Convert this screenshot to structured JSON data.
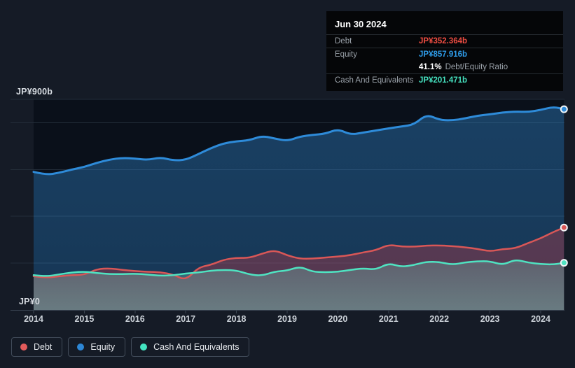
{
  "axis": {
    "y_top_label": "JP¥900b",
    "y_bottom_label": "JP¥0",
    "x_ticks": [
      "2014",
      "2015",
      "2016",
      "2017",
      "2018",
      "2019",
      "2020",
      "2021",
      "2022",
      "2023",
      "2024"
    ],
    "y_gridline_values": [
      900,
      800,
      600,
      400,
      200
    ]
  },
  "tooltip": {
    "date": "Jun 30 2024",
    "debt_label": "Debt",
    "debt_value": "JP¥352.364b",
    "equity_label": "Equity",
    "equity_value": "JP¥857.916b",
    "ratio_value": "41.1%",
    "ratio_label": "Debt/Equity Ratio",
    "cash_label": "Cash And Equivalents",
    "cash_value": "JP¥201.471b"
  },
  "legend": {
    "items": [
      {
        "label": "Debt",
        "color": "#E25B5B"
      },
      {
        "label": "Equity",
        "color": "#2D87D6"
      },
      {
        "label": "Cash And Equivalents",
        "color": "#43E3C0"
      }
    ]
  },
  "colors": {
    "page_bg": "#151B26",
    "plot_bg": "#0A101A",
    "grid_line": "#242E3A",
    "axis_line": "#3A4451",
    "tick_text": "#CBD1D8",
    "debt_line": "#D95757",
    "equity_line": "#2E8BD9",
    "cash_line": "#4FE3C1",
    "debt_value_text": "#EF4D42",
    "equity_value_text": "#2E9BE8",
    "cash_value_text": "#45E0BE",
    "dot_ring": "#F2F5F7"
  },
  "chart_data": {
    "type": "area",
    "title": "Debt, Equity and Cash history 2014 - Jun 30 2024",
    "unit": "JP¥ billions",
    "ylim": [
      0,
      900
    ],
    "x_range": [
      2014,
      2024.46
    ],
    "grid": true,
    "legend_position": "bottom-left",
    "x": [
      2014,
      2014.25,
      2014.5,
      2014.75,
      2015,
      2015.25,
      2015.5,
      2015.75,
      2016,
      2016.25,
      2016.5,
      2016.75,
      2017,
      2017.25,
      2017.5,
      2017.75,
      2018,
      2018.25,
      2018.5,
      2018.75,
      2019,
      2019.25,
      2019.5,
      2019.75,
      2020,
      2020.25,
      2020.5,
      2020.75,
      2021,
      2021.25,
      2021.5,
      2021.75,
      2022,
      2022.25,
      2022.5,
      2022.75,
      2023,
      2023.25,
      2023.5,
      2023.75,
      2024,
      2024.25,
      2024.46
    ],
    "series": [
      {
        "name": "Equity",
        "color": "#2E8BD9",
        "final_label": "JP¥857.916b",
        "values": [
          590,
          577,
          586,
          600,
          611,
          629,
          643,
          650,
          647,
          641,
          652,
          639,
          641,
          666,
          692,
          712,
          721,
          725,
          744,
          733,
          722,
          741,
          748,
          753,
          773,
          749,
          758,
          767,
          776,
          784,
          792,
          836,
          812,
          810,
          818,
          830,
          836,
          844,
          848,
          846,
          855,
          868,
          857.916
        ]
      },
      {
        "name": "Debt",
        "color": "#D95757",
        "final_label": "JP¥352.364b",
        "values": [
          144,
          137,
          144,
          149,
          150,
          175,
          178,
          171,
          166,
          163,
          161,
          152,
          126,
          182,
          193,
          215,
          223,
          222,
          240,
          256,
          233,
          219,
          219,
          224,
          228,
          234,
          246,
          255,
          279,
          271,
          270,
          275,
          276,
          273,
          268,
          261,
          250,
          260,
          263,
          286,
          306,
          333,
          352.364
        ]
      },
      {
        "name": "Cash And Equivalents",
        "color": "#4FE3C1",
        "final_label": "JP¥201.471b",
        "values": [
          149,
          143,
          152,
          160,
          164,
          158,
          153,
          153,
          155,
          151,
          146,
          148,
          156,
          160,
          168,
          171,
          169,
          152,
          146,
          164,
          168,
          186,
          163,
          161,
          163,
          171,
          178,
          172,
          200,
          184,
          192,
          206,
          205,
          193,
          203,
          208,
          208,
          192,
          216,
          202,
          196,
          194,
          201.471
        ]
      }
    ]
  }
}
